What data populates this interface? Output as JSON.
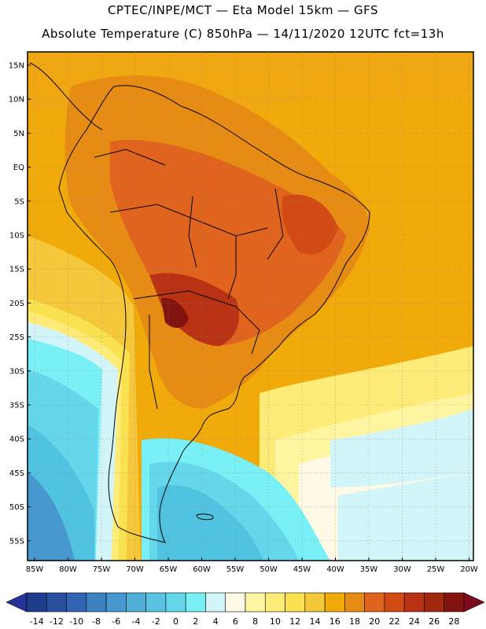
{
  "title_line1": "CPTEC/INPE/MCT —  Eta Model 15km — GFS",
  "title_line2": "Absolute Temperature (C) 850hPa — 14/11/2020 12UTC fct=13h",
  "lat_labels": [
    "15N",
    "10N",
    "5N",
    "EQ",
    "5S",
    "10S",
    "15S",
    "20S",
    "25S",
    "30S",
    "35S",
    "40S",
    "45S",
    "50S",
    "55S"
  ],
  "lon_labels": [
    "85W",
    "80W",
    "75W",
    "70W",
    "65W",
    "60W",
    "55W",
    "50W",
    "45W",
    "40W",
    "35W",
    "30W",
    "25W",
    "20W"
  ],
  "colorbar": {
    "labels": [
      "-14",
      "-12",
      "-10",
      "-8",
      "-6",
      "-4",
      "-2",
      "0",
      "2",
      "4",
      "6",
      "8",
      "10",
      "12",
      "14",
      "16",
      "18",
      "20",
      "22",
      "24",
      "26",
      "28"
    ],
    "colors": [
      "#1e3c8c",
      "#28509f",
      "#3264b4",
      "#3c82c3",
      "#4698cf",
      "#50aed7",
      "#5ac3e1",
      "#64d7eb",
      "#78f0f5",
      "#d2f5fa",
      "#fffae6",
      "#fff5a0",
      "#ffeb78",
      "#fae150",
      "#f5c83c",
      "#f0aa0a",
      "#e68c14",
      "#e1641e",
      "#d24b14",
      "#b93214",
      "#a0280f",
      "#82140f"
    ],
    "under_color": "#28329b",
    "over_color": "#7d0a1e"
  },
  "colors": {
    "ocean_warm": "#f0aa0a",
    "land_hot": "#d2641e",
    "land_hottest": "#a0280f",
    "cold_south": "#50c3e1",
    "coast": "#000000"
  }
}
